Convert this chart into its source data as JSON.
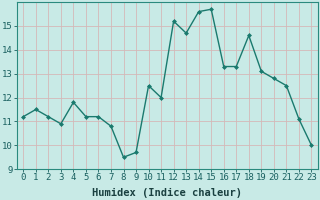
{
  "x": [
    0,
    1,
    2,
    3,
    4,
    5,
    6,
    7,
    8,
    9,
    10,
    11,
    12,
    13,
    14,
    15,
    16,
    17,
    18,
    19,
    20,
    21,
    22,
    23
  ],
  "y": [
    11.2,
    11.5,
    11.2,
    10.9,
    11.8,
    11.2,
    11.2,
    10.8,
    9.5,
    9.7,
    12.5,
    12.0,
    15.2,
    14.7,
    15.6,
    15.7,
    13.3,
    13.3,
    14.6,
    13.1,
    12.8,
    12.5,
    11.1,
    10.0
  ],
  "line_color": "#1a7a6e",
  "bg_color": "#c8eae6",
  "grid_color": "#b0d8d4",
  "xlabel": "Humidex (Indice chaleur)",
  "ylim": [
    9,
    16
  ],
  "xlim_left": -0.5,
  "xlim_right": 23.5,
  "yticks": [
    9,
    10,
    11,
    12,
    13,
    14,
    15
  ],
  "xticks": [
    0,
    1,
    2,
    3,
    4,
    5,
    6,
    7,
    8,
    9,
    10,
    11,
    12,
    13,
    14,
    15,
    16,
    17,
    18,
    19,
    20,
    21,
    22,
    23
  ],
  "xtick_labels": [
    "0",
    "1",
    "2",
    "3",
    "4",
    "5",
    "6",
    "7",
    "8",
    "9",
    "10",
    "11",
    "12",
    "13",
    "14",
    "15",
    "16",
    "17",
    "18",
    "19",
    "20",
    "21",
    "22",
    "23"
  ],
  "marker": "D",
  "marker_size": 2.0,
  "line_width": 1.0,
  "xlabel_fontsize": 7.5,
  "tick_fontsize": 6.5,
  "tick_color": "#1a6060",
  "xlabel_color": "#1a4040"
}
